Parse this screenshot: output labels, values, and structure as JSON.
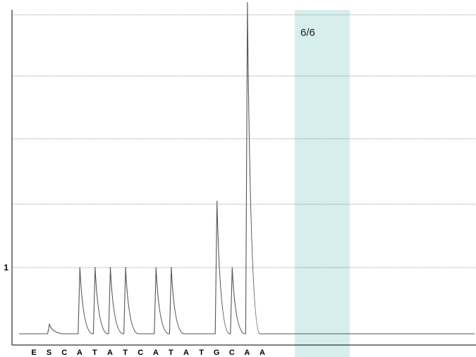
{
  "chart_data": {
    "type": "line",
    "title": "",
    "xlabel": "",
    "ylabel": "",
    "categories": [
      "E",
      "S",
      "C",
      "A",
      "T",
      "A",
      "T",
      "C",
      "A",
      "T",
      "A",
      "T",
      "G",
      "C",
      "A",
      "A"
    ],
    "y_tick_labels": [
      "1"
    ],
    "ylim": [
      0,
      4
    ],
    "grid": true,
    "highlight": {
      "categories": [
        10,
        11
      ],
      "label": "6/6",
      "color": "#d6eeee"
    },
    "series": [
      {
        "values": [
          0,
          0.14,
          0,
          1,
          1,
          1,
          1,
          0,
          1,
          1,
          0,
          0,
          2,
          1,
          5,
          0
        ]
      }
    ],
    "colors": {
      "trace": "#555555",
      "grid": "#777777",
      "axis": "#000000",
      "highlight": "#d6eeee"
    }
  }
}
